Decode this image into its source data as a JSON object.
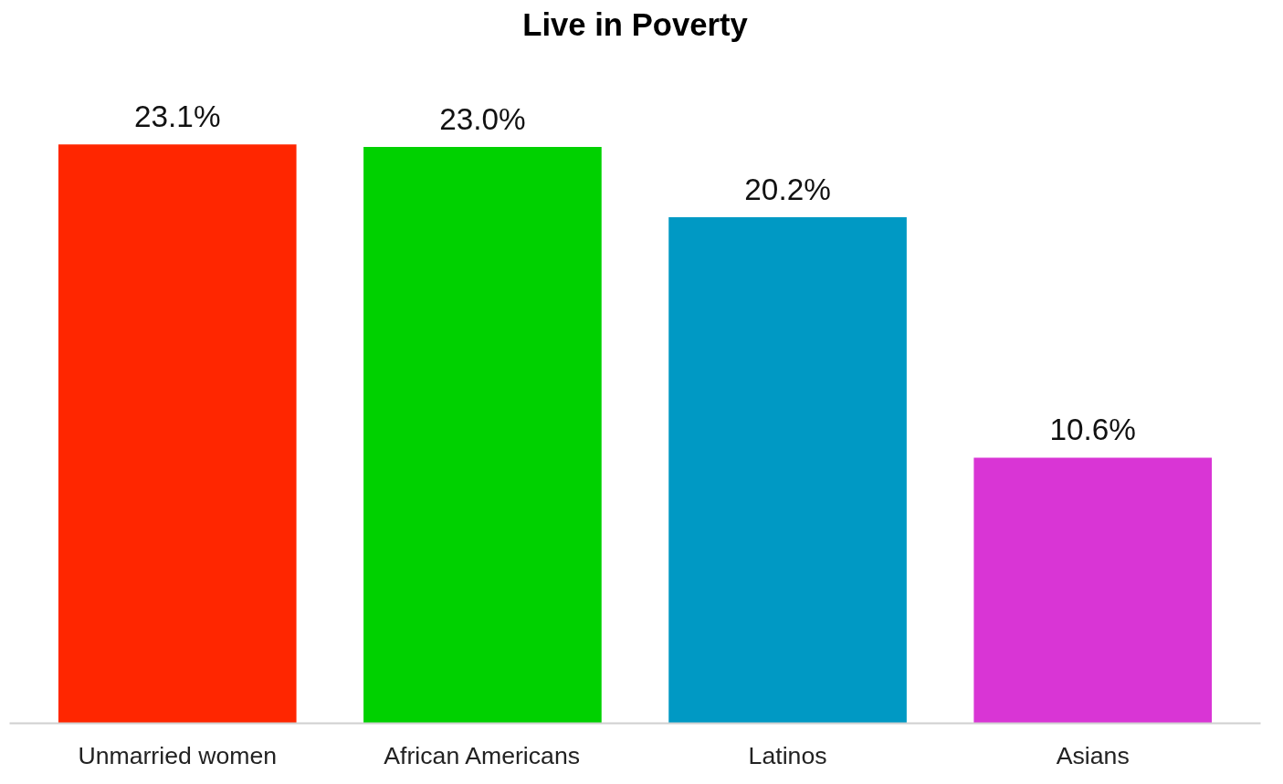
{
  "chart_data": {
    "type": "bar",
    "title": "Live in Poverty",
    "categories": [
      "Unmarried women",
      "African Americans",
      "Latinos",
      "Asians"
    ],
    "values": [
      23.1,
      23.0,
      20.2,
      10.6
    ],
    "colors": [
      "#ff2600",
      "#00d100",
      "#0099c4",
      "#d935d5"
    ],
    "value_labels": [
      "23.1%",
      "23.0%",
      "20.2%",
      "10.6%"
    ],
    "tick_labels": "x",
    "grid": false
  }
}
